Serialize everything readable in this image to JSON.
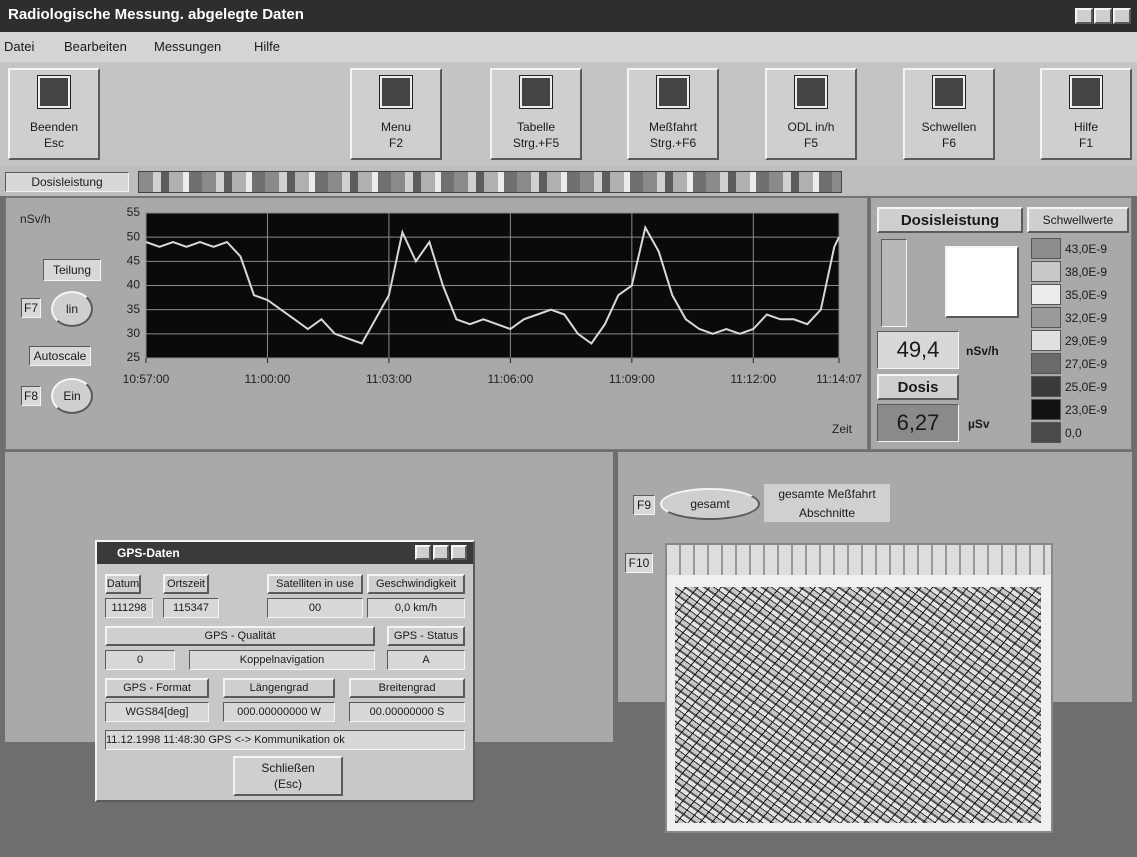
{
  "window": {
    "title": "Radiologische Messung. abgelegte Daten"
  },
  "menu": [
    "Datei",
    "Bearbeiten",
    "Messungen",
    "Hilfe"
  ],
  "toolbar": [
    {
      "label": "Beenden",
      "key": "Esc"
    },
    {
      "label": "Menu",
      "key": "F2"
    },
    {
      "label": "Tabelle",
      "key": "Strg.+F5"
    },
    {
      "label": "Meßfahrt",
      "key": "Strg.+F6"
    },
    {
      "label": "ODL in/h",
      "key": "F5"
    },
    {
      "label": "Schwellen",
      "key": "F6"
    },
    {
      "label": "Hilfe",
      "key": "F1"
    }
  ],
  "strip_label": "Dosisleistung",
  "controls": {
    "teilung": "Teilung",
    "f7": "F7",
    "lin": "lin",
    "autoscale": "Autoscale",
    "f8": "F8",
    "ein": "Ein"
  },
  "chart_data": {
    "type": "line",
    "ylabel": "nSv/h",
    "xlabel": "Zeit",
    "color": "#d8d8d8",
    "grid": true,
    "x": [
      "10:57:00",
      "10:57:20",
      "10:57:40",
      "10:58:00",
      "10:58:20",
      "10:58:40",
      "10:59:00",
      "10:59:20",
      "10:59:40",
      "11:00:00",
      "11:00:20",
      "11:00:40",
      "11:01:00",
      "11:01:20",
      "11:01:40",
      "11:02:00",
      "11:02:20",
      "11:02:40",
      "11:03:00",
      "11:03:20",
      "11:03:40",
      "11:04:00",
      "11:04:20",
      "11:04:40",
      "11:05:00",
      "11:05:20",
      "11:05:40",
      "11:06:00",
      "11:06:20",
      "11:06:40",
      "11:07:00",
      "11:07:20",
      "11:07:40",
      "11:08:00",
      "11:08:20",
      "11:08:40",
      "11:09:00",
      "11:09:20",
      "11:09:40",
      "11:10:00",
      "11:10:20",
      "11:10:40",
      "11:11:00",
      "11:11:20",
      "11:11:40",
      "11:12:00",
      "11:12:20",
      "11:12:40",
      "11:13:00",
      "11:13:20",
      "11:13:40",
      "11:14:00",
      "11:14:07"
    ],
    "values": [
      49,
      48,
      49,
      48,
      49,
      48,
      49,
      46,
      38,
      37,
      35,
      33,
      31,
      33,
      30,
      29,
      28,
      33,
      38,
      51,
      45,
      49,
      40,
      33,
      32,
      33,
      32,
      31,
      33,
      34,
      35,
      34,
      30,
      28,
      32,
      38,
      40,
      52,
      47,
      38,
      33,
      31,
      30,
      31,
      30,
      31,
      34,
      33,
      33,
      32,
      35,
      48,
      50
    ],
    "xlim": [
      "10:57:00",
      "11:14:07"
    ],
    "xticks": [
      "10:57:00",
      "11:00:00",
      "11:03:00",
      "11:06:00",
      "11:09:00",
      "11:12:00",
      "11:14:07"
    ],
    "ylim": [
      25,
      55
    ],
    "yticks": [
      25,
      30,
      35,
      40,
      45,
      50,
      55
    ]
  },
  "status_panel": {
    "heading": "Dosisleistung",
    "rate_value": "49,4",
    "rate_unit": "nSv/h",
    "dose_heading": "Dosis",
    "dose_value": "6,27",
    "dose_unit": "µSv",
    "thresholds_heading": "Schwellwerte",
    "thresholds": [
      {
        "label": "43,0E-9",
        "color": "#8c8c8c"
      },
      {
        "label": "38,0E-9",
        "color": "#c8c8c8"
      },
      {
        "label": "35,0E-9",
        "color": "#ececec"
      },
      {
        "label": "32,0E-9",
        "color": "#9a9a9a"
      },
      {
        "label": "29,0E-9",
        "color": "#e0e0e0"
      },
      {
        "label": "27,0E-9",
        "color": "#6a6a6a"
      },
      {
        "label": "25,0E-9",
        "color": "#3a3a3a"
      },
      {
        "label": "23,0E-9",
        "color": "#121212"
      },
      {
        "label": "0,0",
        "color": "#4a4a4a"
      }
    ]
  },
  "segments": {
    "f9": "F9",
    "gesamt": "gesamt",
    "option_1": "gesamte Meßfahrt",
    "option_2": "Abschnitte",
    "f10": "F10"
  },
  "gps": {
    "title": "GPS-Daten",
    "date_label": "Datum",
    "time_label": "Ortszeit",
    "sat_label": "Satelliten in use",
    "speed_label": "Geschwindigkeit",
    "date": "111298",
    "time": "115347",
    "sat": "00",
    "speed": "0,0 km/h",
    "quality_label": "GPS - Qualität",
    "status_label": "GPS - Status",
    "quality": "0",
    "quality_text": "Koppelnavigation",
    "status": "A",
    "format_label": "GPS - Format",
    "lon_label": "Längengrad",
    "lat_label": "Breitengrad",
    "format": "WGS84[deg]",
    "lon": "000.00000000 W",
    "lat": "00.00000000 S",
    "message": "11.12.1998 11:48:30 GPS <-> Kommunikation ok",
    "close": "Schließen",
    "close_key": "(Esc)"
  }
}
